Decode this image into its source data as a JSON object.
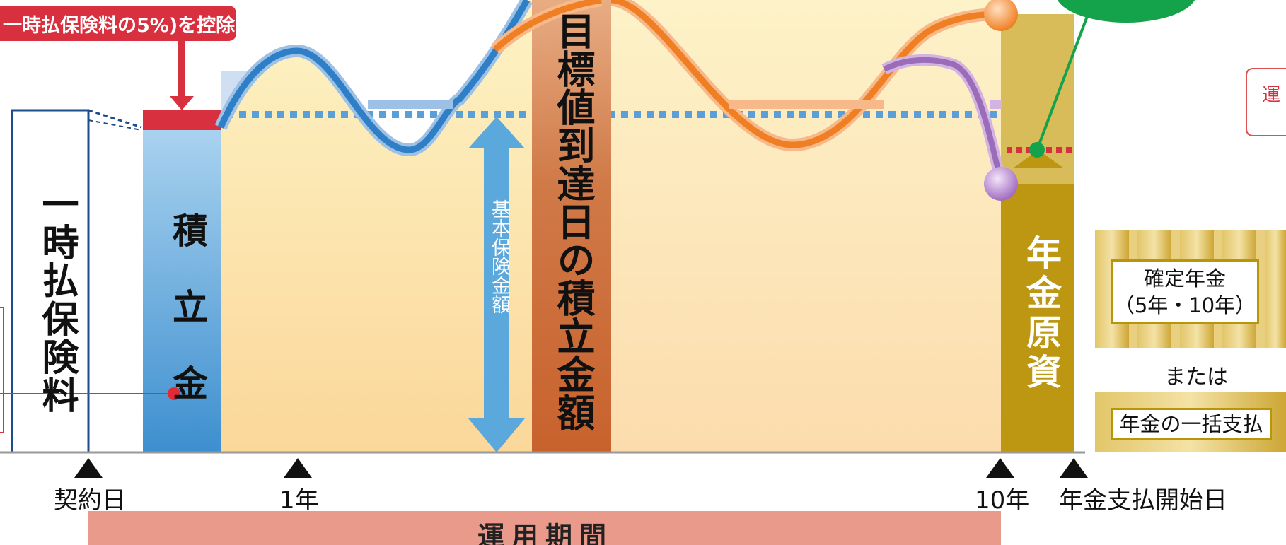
{
  "deduction_label": "一時払保険料の5%)を控除",
  "columns": {
    "single_premium": "一時払保険料",
    "accumulation": "積 立 金",
    "target_achievement": "目標値到達日の積立金額",
    "pension_fund": "年金原資"
  },
  "basic_insurance_amount": "基本保険金額",
  "timeline": {
    "contract_date": "契約日",
    "year_1": "1年",
    "year_10": "10年",
    "pension_start": "年金支払開始日",
    "period_label": "運用期間"
  },
  "options": {
    "fixed_pension_line1": "確定年金",
    "fixed_pension_line2": "（5年・10年）",
    "or": "または",
    "lump_sum": "年金の一括支払"
  },
  "right_cut_label": "運",
  "colors": {
    "deduction_red": "#d8303e",
    "blue_curve": "#2f7fc6",
    "orange_curve": "#f07f24",
    "purple_curve": "#9b6cb8",
    "target_column": "#c96633",
    "pension_gold": "#bd9712",
    "period_band": "#e99a8b",
    "green_pointer": "#14a34b"
  }
}
